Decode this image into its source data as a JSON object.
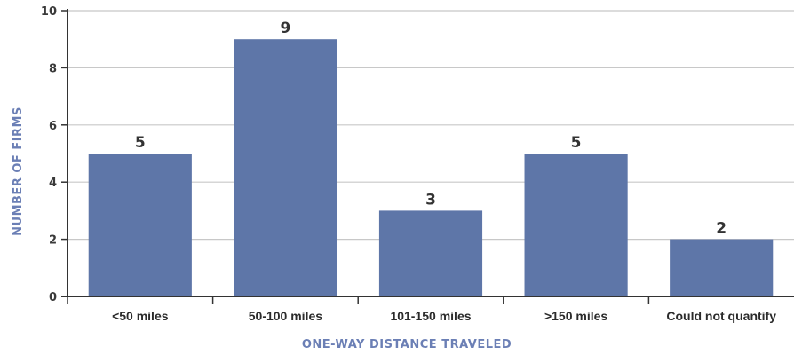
{
  "chart_data": {
    "type": "bar",
    "categories": [
      "<50 miles",
      "50-100 miles",
      "101-150 miles",
      ">150 miles",
      "Could not quantify"
    ],
    "values": [
      5,
      9,
      3,
      5,
      2
    ],
    "title": "",
    "xlabel": "ONE-WAY DISTANCE TRAVELED",
    "ylabel": "NUMBER OF FIRMS",
    "ylim": [
      0,
      10
    ],
    "yticks": [
      0,
      2,
      4,
      6,
      8,
      10
    ],
    "grid": true,
    "legend": "none",
    "colors": {
      "bar": "#5e76a8",
      "axis_title": "#6b7fb5",
      "gridline": "#c8c8c8",
      "axis": "#333333"
    }
  }
}
